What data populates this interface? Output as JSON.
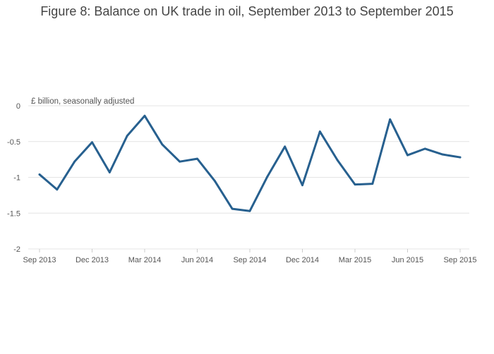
{
  "chart_data": {
    "type": "line",
    "title": "Figure 8: Balance on UK trade in oil, September 2013 to September 2015",
    "units_label": "£ billion, seasonally adjusted",
    "xlabel": "",
    "ylabel": "",
    "x": [
      "Sep 2013",
      "Oct 2013",
      "Nov 2013",
      "Dec 2013",
      "Jan 2014",
      "Feb 2014",
      "Mar 2014",
      "Apr 2014",
      "May 2014",
      "Jun 2014",
      "Jul 2014",
      "Aug 2014",
      "Sep 2014",
      "Oct 2014",
      "Nov 2014",
      "Dec 2014",
      "Jan 2015",
      "Feb 2015",
      "Mar 2015",
      "Apr 2015",
      "May 2015",
      "Jun 2015",
      "Jul 2015",
      "Aug 2015",
      "Sep 2015"
    ],
    "series": [
      {
        "values": [
          -0.96,
          -1.17,
          -0.78,
          -0.51,
          -0.93,
          -0.42,
          -0.14,
          -0.54,
          -0.78,
          -0.74,
          -1.05,
          -1.44,
          -1.47,
          -0.99,
          -0.57,
          -1.11,
          -0.36,
          -0.76,
          -1.1,
          -1.09,
          -0.19,
          -0.69,
          -0.6,
          -0.68,
          -0.72
        ],
        "color": "#27608f"
      }
    ],
    "x_tick_labels": [
      "Sep 2013",
      "Dec 2013",
      "Mar 2014",
      "Jun 2014",
      "Sep 2014",
      "Dec 2014",
      "Mar 2015",
      "Jun 2015",
      "Sep 2015"
    ],
    "y_tick_labels": [
      "0",
      "-0.5",
      "-1",
      "-1.5",
      "-2"
    ],
    "y_ticks": [
      0,
      -0.5,
      -1,
      -1.5,
      -2
    ],
    "ylim": [
      -2,
      0
    ],
    "grid": true,
    "legend": false
  }
}
